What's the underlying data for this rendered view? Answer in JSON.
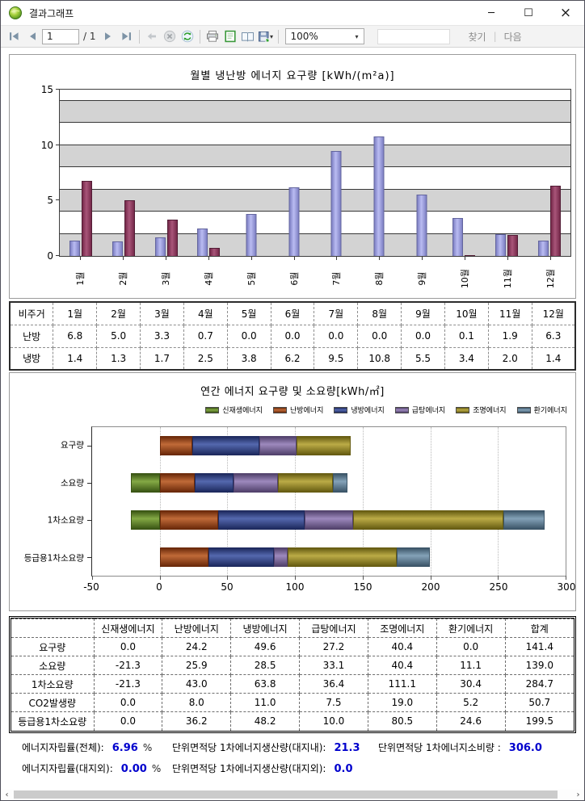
{
  "window": {
    "title": "결과그래프"
  },
  "toolbar": {
    "page_value": "1",
    "page_of": "/ 1",
    "zoom": "100%",
    "find": "찾기",
    "sep": "|",
    "next": "다음"
  },
  "chart_data": [
    {
      "type": "bar",
      "title": "월별 냉난방 에너지 요구량 [kWh/(m²a)]",
      "categories": [
        "1월",
        "2월",
        "3월",
        "4월",
        "5월",
        "6월",
        "7월",
        "8월",
        "9월",
        "10월",
        "11월",
        "12월"
      ],
      "series": [
        {
          "name": "냉방",
          "color": "#9193d8",
          "color_light": "#babcf2",
          "color_dark": "#7e80c4",
          "color_border": "#63659e",
          "values": [
            1.4,
            1.3,
            1.7,
            2.5,
            3.8,
            6.2,
            9.5,
            10.8,
            5.5,
            3.4,
            2.0,
            1.4
          ]
        },
        {
          "name": "난방",
          "color": "#8f3a60",
          "color_light": "#a85579",
          "color_dark": "#76294a",
          "color_border": "#521c35",
          "values": [
            6.8,
            5.0,
            3.3,
            0.7,
            0.0,
            0.0,
            0.0,
            0.0,
            0.0,
            0.1,
            1.9,
            6.3
          ]
        }
      ],
      "ylim": [
        0,
        15
      ],
      "yticks": [
        0,
        5,
        10,
        15
      ],
      "gridlines": [
        2,
        4,
        6,
        8,
        10,
        12,
        14
      ],
      "bands": [
        [
          0,
          2
        ],
        [
          4,
          6
        ],
        [
          8,
          10
        ],
        [
          12,
          14
        ]
      ],
      "band_color": "#d3d3d3",
      "grid": true,
      "legend_position": "none"
    },
    {
      "type": "bar-horizontal-stacked",
      "title": "연간 에너지 요구량 및 소요량[kWh/㎡]",
      "categories": [
        "요구량",
        "소요량",
        "1차소요량",
        "등급용1차소요량"
      ],
      "series": [
        {
          "name": "신재생에너지",
          "color": "#4d6e1f",
          "color_light": "#84a945",
          "color_dark": "#3a5514",
          "values": [
            0.0,
            -21.3,
            -21.3,
            0.0
          ]
        },
        {
          "name": "난방에너지",
          "color": "#8c3a10",
          "color_light": "#c06a38",
          "color_dark": "#6b2a0a",
          "values": [
            24.2,
            25.9,
            43.0,
            36.2
          ]
        },
        {
          "name": "냉방에너지",
          "color": "#2a3a7c",
          "color_light": "#5468ae",
          "color_dark": "#1e2a5e",
          "values": [
            49.6,
            28.5,
            63.8,
            48.2
          ]
        },
        {
          "name": "급탕에너지",
          "color": "#6d5a8c",
          "color_light": "#9d89bd",
          "color_dark": "#52426c",
          "values": [
            27.2,
            33.1,
            36.4,
            10.0
          ]
        },
        {
          "name": "조명에너지",
          "color": "#877a1c",
          "color_light": "#bbab46",
          "color_dark": "#665c12",
          "values": [
            40.4,
            40.4,
            111.1,
            80.5
          ]
        },
        {
          "name": "환기에너지",
          "color": "#507088",
          "color_light": "#84a2b8",
          "color_dark": "#3c5568",
          "values": [
            0.0,
            11.1,
            30.4,
            24.6
          ]
        }
      ],
      "xlim": [
        -50,
        300
      ],
      "xticks": [
        -50,
        0,
        50,
        100,
        150,
        200,
        250,
        300
      ],
      "grid": true,
      "legend_position": "top-right"
    }
  ],
  "table1": {
    "header": [
      "비주거",
      "1월",
      "2월",
      "3월",
      "4월",
      "5월",
      "6월",
      "7월",
      "8월",
      "9월",
      "10월",
      "11월",
      "12월"
    ],
    "rows": [
      [
        "난방",
        "6.8",
        "5.0",
        "3.3",
        "0.7",
        "0.0",
        "0.0",
        "0.0",
        "0.0",
        "0.0",
        "0.1",
        "1.9",
        "6.3"
      ],
      [
        "냉방",
        "1.4",
        "1.3",
        "1.7",
        "2.5",
        "3.8",
        "6.2",
        "9.5",
        "10.8",
        "5.5",
        "3.4",
        "2.0",
        "1.4"
      ]
    ]
  },
  "table2": {
    "header": [
      "",
      "신재생에너지",
      "난방에너지",
      "냉방에너지",
      "급탕에너지",
      "조명에너지",
      "환기에너지",
      "합계"
    ],
    "rows": [
      [
        "요구량",
        "0.0",
        "24.2",
        "49.6",
        "27.2",
        "40.4",
        "0.0",
        "141.4"
      ],
      [
        "소요량",
        "-21.3",
        "25.9",
        "28.5",
        "33.1",
        "40.4",
        "11.1",
        "139.0"
      ],
      [
        "1차소요량",
        "-21.3",
        "43.0",
        "63.8",
        "36.4",
        "111.1",
        "30.4",
        "284.7"
      ],
      [
        "CO2발생량",
        "0.0",
        "8.0",
        "11.0",
        "7.5",
        "19.0",
        "5.2",
        "50.7"
      ],
      [
        "등급용1차소요량",
        "0.0",
        "36.2",
        "48.2",
        "10.0",
        "80.5",
        "24.6",
        "199.5"
      ]
    ]
  },
  "summary": {
    "row1": [
      {
        "label": "에너지자립률(전체):",
        "value": "6.96",
        "unit": "%"
      },
      {
        "label": "단위면적당 1차에너지생산량(대지내):",
        "value": "21.3",
        "unit": ""
      },
      {
        "label": "단위면적당 1차에너지소비량 :",
        "value": "306.0",
        "unit": ""
      }
    ],
    "row2": [
      {
        "label": "에너지자립률(대지외):",
        "value": "0.00",
        "unit": "%"
      },
      {
        "label": "단위면적당 1차에너지생산량(대지외):",
        "value": "0.0",
        "unit": ""
      }
    ]
  },
  "accent_colors": {
    "value_blue": "#0000cd",
    "band_gray": "#d3d3d3"
  }
}
